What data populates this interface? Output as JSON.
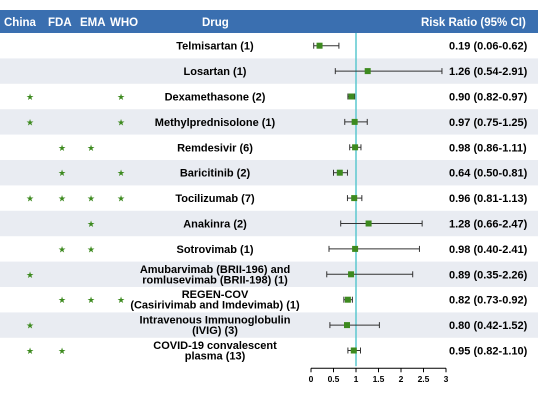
{
  "header": {
    "col_china": "China",
    "col_fda": "FDA",
    "col_ema": "EMA",
    "col_who": "WHO",
    "col_drug": "Drug",
    "col_rr": "Risk Ratio (95% CI)"
  },
  "colors": {
    "header_bg": "#3a6fb0",
    "row_alt_bg": "#e9ecf2",
    "marker": "#3d8a1f",
    "ref_line": "#5cc8cf"
  },
  "approval_icon": "star-icon",
  "chart_data": {
    "type": "forest",
    "xlim": [
      0,
      3
    ],
    "xticks": [
      0,
      0.5,
      1,
      1.5,
      2,
      2.5,
      3
    ],
    "x_tick_labels": [
      "0",
      "0.5",
      "1",
      "1.5",
      "2",
      "2.5",
      "3"
    ],
    "reference_line": 1,
    "rows": [
      {
        "drug": [
          "Telmisartan (1)"
        ],
        "rr": 0.19,
        "lo": 0.06,
        "hi": 0.62,
        "label": "0.19 (0.06-0.62)",
        "china": false,
        "fda": false,
        "ema": false,
        "who": false
      },
      {
        "drug": [
          "Losartan (1)"
        ],
        "rr": 1.26,
        "lo": 0.54,
        "hi": 2.91,
        "label": "1.26 (0.54-2.91)",
        "china": false,
        "fda": false,
        "ema": false,
        "who": false
      },
      {
        "drug": [
          "Dexamethasone (2)"
        ],
        "rr": 0.9,
        "lo": 0.82,
        "hi": 0.97,
        "label": "0.90 (0.82-0.97)",
        "china": true,
        "fda": false,
        "ema": false,
        "who": true
      },
      {
        "drug": [
          "Methylprednisolone (1)"
        ],
        "rr": 0.97,
        "lo": 0.75,
        "hi": 1.25,
        "label": "0.97 (0.75-1.25)",
        "china": true,
        "fda": false,
        "ema": false,
        "who": true
      },
      {
        "drug": [
          "Remdesivir (6)"
        ],
        "rr": 0.98,
        "lo": 0.86,
        "hi": 1.11,
        "label": "0.98 (0.86-1.11)",
        "china": false,
        "fda": true,
        "ema": true,
        "who": false
      },
      {
        "drug": [
          "Baricitinib (2)"
        ],
        "rr": 0.64,
        "lo": 0.5,
        "hi": 0.81,
        "label": "0.64 (0.50-0.81)",
        "china": false,
        "fda": true,
        "ema": false,
        "who": true
      },
      {
        "drug": [
          "Tocilizumab (7)"
        ],
        "rr": 0.96,
        "lo": 0.81,
        "hi": 1.13,
        "label": "0.96 (0.81-1.13)",
        "china": true,
        "fda": true,
        "ema": true,
        "who": true
      },
      {
        "drug": [
          "Anakinra (2)"
        ],
        "rr": 1.28,
        "lo": 0.66,
        "hi": 2.47,
        "label": "1.28 (0.66-2.47)",
        "china": false,
        "fda": false,
        "ema": true,
        "who": false
      },
      {
        "drug": [
          "Sotrovimab (1)"
        ],
        "rr": 0.98,
        "lo": 0.4,
        "hi": 2.41,
        "label": "0.98 (0.40-2.41)",
        "china": false,
        "fda": true,
        "ema": true,
        "who": false
      },
      {
        "drug": [
          "Amubarvimab (BRII-196) and",
          "romlusevimab (BRII-198) (1)"
        ],
        "rr": 0.89,
        "lo": 0.35,
        "hi": 2.26,
        "label": "0.89 (0.35-2.26)",
        "china": true,
        "fda": false,
        "ema": false,
        "who": false
      },
      {
        "drug": [
          "REGEN-COV",
          "(Casirivimab and Imdevimab) (1)"
        ],
        "rr": 0.82,
        "lo": 0.73,
        "hi": 0.92,
        "label": "0.82 (0.73-0.92)",
        "china": false,
        "fda": true,
        "ema": true,
        "who": true
      },
      {
        "drug": [
          "Intravenous Immunoglobulin",
          "(IVIG) (3)"
        ],
        "rr": 0.8,
        "lo": 0.42,
        "hi": 1.52,
        "label": "0.80 (0.42-1.52)",
        "china": true,
        "fda": false,
        "ema": false,
        "who": false
      },
      {
        "drug": [
          "COVID-19 convalescent",
          "plasma (13)"
        ],
        "rr": 0.95,
        "lo": 0.82,
        "hi": 1.1,
        "label": "0.95 (0.82-1.10)",
        "china": true,
        "fda": true,
        "ema": false,
        "who": false
      }
    ]
  }
}
